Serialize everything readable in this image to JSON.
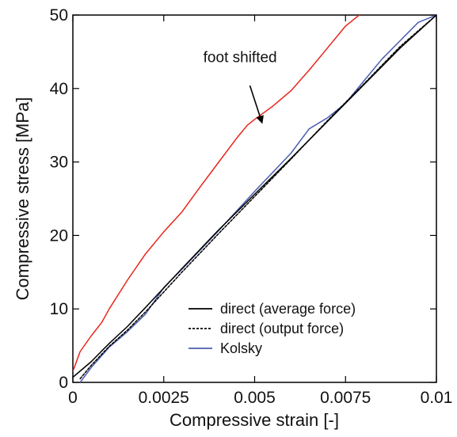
{
  "chart_data": {
    "type": "line",
    "title": "",
    "xlabel": "Compressive strain [-]",
    "ylabel": "Compressive stress [MPa]",
    "xlim": [
      0,
      0.01
    ],
    "ylim": [
      0,
      50
    ],
    "x_ticks": [
      0,
      0.0025,
      0.005,
      0.0075,
      0.01
    ],
    "x_tick_labels": [
      "0",
      "0.0025",
      "0.005",
      "0.0075",
      "0.01"
    ],
    "y_ticks": [
      0,
      10,
      20,
      30,
      40,
      50
    ],
    "y_tick_labels": [
      "0",
      "10",
      "20",
      "30",
      "40",
      "50"
    ],
    "grid": false,
    "legend_position": "bottom-right",
    "series": [
      {
        "name": "direct (average force)",
        "color": "#000000",
        "dash": "solid",
        "in_legend": true,
        "x": [
          0,
          0.0005,
          0.001,
          0.0015,
          0.002,
          0.003,
          0.004,
          0.005,
          0.006,
          0.007,
          0.008,
          0.009,
          0.01
        ],
        "y": [
          0.7,
          2.8,
          5.3,
          7.6,
          10.2,
          15.5,
          20.7,
          25.6,
          30.5,
          35.5,
          40.5,
          45.5,
          50
        ]
      },
      {
        "name": "direct (output force)",
        "color": "#000000",
        "dash": "dashed",
        "in_legend": true,
        "x": [
          0.0002,
          0.0005,
          0.001,
          0.0015,
          0.002,
          0.003,
          0.004,
          0.005,
          0.006,
          0.007,
          0.008,
          0.009,
          0.01
        ],
        "y": [
          0.5,
          2.3,
          4.9,
          7.1,
          9.6,
          15.0,
          20.2,
          25.3,
          30.4,
          35.6,
          40.6,
          45.7,
          50
        ]
      },
      {
        "name": "Kolsky",
        "color": "#4a5db0",
        "dash": "solid",
        "in_legend": true,
        "x": [
          0.0002,
          0.0005,
          0.001,
          0.0015,
          0.002,
          0.0025,
          0.003,
          0.004,
          0.005,
          0.006,
          0.0065,
          0.007,
          0.0075,
          0.008,
          0.0085,
          0.009,
          0.0095,
          0.01
        ],
        "y": [
          0,
          2.0,
          4.8,
          6.9,
          9.3,
          12.9,
          15.4,
          20.6,
          26.0,
          31.2,
          34.5,
          36.0,
          38.0,
          41.0,
          44.0,
          46.5,
          49.0,
          50
        ]
      },
      {
        "name": "",
        "color": "#e8251b",
        "dash": "solid",
        "in_legend": false,
        "x": [
          0,
          0.0002,
          0.0005,
          0.0008,
          0.001,
          0.0015,
          0.002,
          0.0025,
          0.003,
          0.0035,
          0.004,
          0.0045,
          0.0048,
          0.005,
          0.0055,
          0.006,
          0.0065,
          0.007,
          0.0075,
          0.008,
          0.0083
        ],
        "y": [
          1.5,
          4.2,
          6.3,
          8.2,
          10.0,
          13.9,
          17.5,
          20.5,
          23.2,
          26.6,
          29.9,
          33.2,
          35.0,
          35.8,
          37.6,
          39.7,
          42.5,
          45.5,
          48.5,
          50.5,
          51.5
        ]
      }
    ],
    "annotations": [
      {
        "text": "foot shifted",
        "text_x": 0.0046,
        "text_y": 43.6,
        "arrow_from_x": 0.00487,
        "arrow_from_y": 40.4,
        "arrow_to_x": 0.0052,
        "arrow_to_y": 35.4
      }
    ]
  }
}
